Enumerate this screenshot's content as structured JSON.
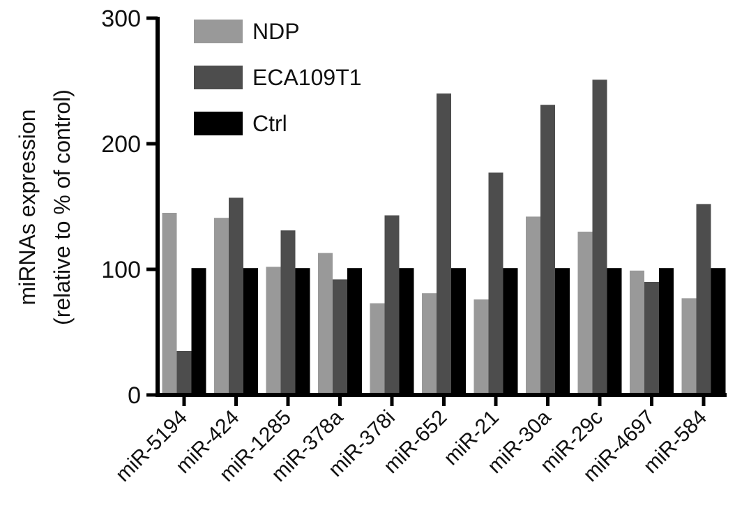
{
  "chart_data": {
    "type": "bar",
    "title": "",
    "xlabel": "",
    "ylabel_line1": "miRNAs expression",
    "ylabel_line2": "(relative to % of control)",
    "ylim": [
      0,
      300
    ],
    "yticks": [
      0,
      100,
      200,
      300
    ],
    "grid": false,
    "legend_position": "top-left",
    "categories": [
      "miR-5194",
      "miR-424",
      "miR-1285",
      "miR-378a",
      "miR-378i",
      "miR-652",
      "miR-21",
      "miR-30a",
      "miR-29c",
      "miR-4697",
      "miR-584"
    ],
    "series": [
      {
        "name": "NDP",
        "color": "#999999",
        "values": [
          145,
          141,
          102,
          113,
          73,
          81,
          76,
          142,
          130,
          99,
          77
        ]
      },
      {
        "name": "ECA109T1",
        "color": "#4d4d4d",
        "values": [
          35,
          157,
          131,
          92,
          143,
          240,
          177,
          231,
          251,
          90,
          152
        ]
      },
      {
        "name": "Ctrl",
        "color": "#000000",
        "values": [
          101,
          101,
          101,
          101,
          101,
          101,
          101,
          101,
          101,
          101,
          101
        ]
      }
    ]
  }
}
